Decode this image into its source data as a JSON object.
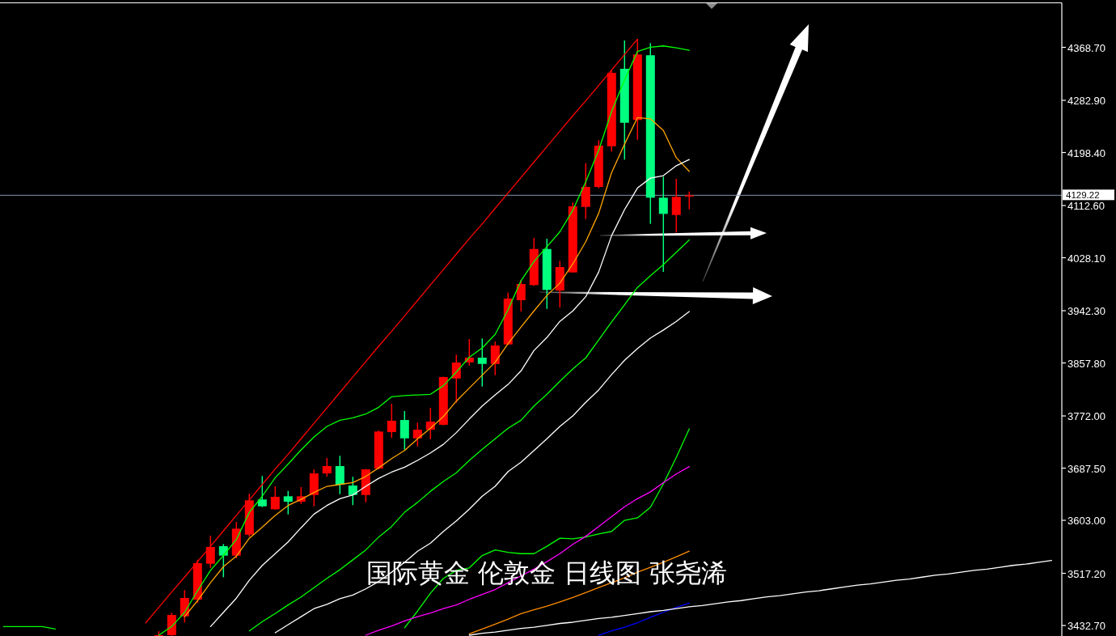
{
  "chart_data": {
    "type": "candlestick",
    "title": "国际黄金 伦敦金 日线图 张尧浠",
    "categories": [
      null,
      null,
      null,
      null,
      null,
      null,
      null,
      null,
      null,
      null,
      null,
      null,
      null,
      null,
      null,
      null,
      null,
      null,
      null,
      null,
      null,
      null,
      null,
      null,
      null,
      null,
      null,
      null,
      null,
      null,
      null,
      null,
      null,
      null,
      null,
      null,
      null,
      null,
      null,
      null,
      null,
      null,
      null,
      null,
      null,
      null,
      null,
      null,
      null,
      null,
      null,
      null,
      null,
      null,
      null,
      null,
      null,
      null,
      null,
      null,
      null,
      null,
      null,
      null,
      null,
      null,
      null,
      null,
      null,
      null,
      null,
      null,
      null,
      null,
      null,
      null,
      null,
      null,
      null,
      null,
      null,
      null
    ],
    "ohlc": [
      null,
      null,
      null,
      null,
      null,
      null,
      null,
      null,
      null,
      null,
      null,
      null,
      [
        3416.0,
        3423.6,
        3416.0,
        3417.0
      ],
      [
        3417.0,
        3453.3,
        3416.0,
        3449.8
      ],
      [
        3447.5,
        3490.0,
        3437.6,
        3477.3
      ],
      [
        3474.6,
        3539.2,
        3469.4,
        3533.6
      ],
      [
        3532.7,
        3578.1,
        3526.1,
        3559.8
      ],
      [
        3561.1,
        3564.6,
        3510.9,
        3545.8
      ],
      [
        3545.8,
        3600.4,
        3541.4,
        3589.5
      ],
      [
        3579.8,
        3646.2,
        3576.4,
        3635.3
      ],
      [
        3636.7,
        3674.7,
        3624.4,
        3625.7
      ],
      [
        3620.9,
        3658.0,
        3620.0,
        3641.0
      ],
      [
        3641.9,
        3650.6,
        3612.6,
        3633.1
      ],
      [
        3633.1,
        3656.7,
        3629.6,
        3641.9
      ],
      [
        3644.0,
        3685.5,
        3625.7,
        3678.9
      ],
      [
        3678.9,
        3703.9,
        3673.7,
        3690.8
      ],
      [
        3690.8,
        3707.4,
        3645.3,
        3660.6
      ],
      [
        3659.3,
        3673.4,
        3627.6,
        3644.0
      ],
      [
        3644.0,
        3686.0,
        3632.2,
        3685.5
      ],
      [
        3686.8,
        3748.8,
        3685.5,
        3746.7
      ],
      [
        3745.8,
        3791.7,
        3736.6,
        3764.2
      ],
      [
        3765.4,
        3779.9,
        3717.4,
        3735.7
      ],
      [
        3735.7,
        3761.1,
        3722.6,
        3749.7
      ],
      [
        3749.7,
        3785.1,
        3734.4,
        3762.8
      ],
      [
        3757.6,
        3835.5,
        3756.7,
        3834.9
      ],
      [
        3832.6,
        3871.2,
        3793.4,
        3858.4
      ],
      [
        3858.8,
        3896.4,
        3853.6,
        3866.3
      ],
      [
        3866.3,
        3897.4,
        3819.6,
        3856.2
      ],
      [
        3856.2,
        3892.5,
        3837.9,
        3886.0
      ],
      [
        3887.7,
        3971.5,
        3887.0,
        3962.0
      ],
      [
        3959.3,
        3992.1,
        3941.0,
        3985.5
      ],
      [
        3983.8,
        4060.2,
        3982.5,
        4042.2
      ],
      [
        4042.2,
        4058.9,
        3945.3,
        3976.0
      ],
      [
        3975.0,
        4023.1,
        3947.5,
        4013.0
      ],
      [
        4004.3,
        4117.8,
        4004.0,
        4111.3
      ],
      [
        4110.4,
        4181.1,
        4090.7,
        4142.7
      ],
      [
        4142.7,
        4218.3,
        4140.5,
        4209.5
      ],
      [
        4208.6,
        4331.8,
        4200.0,
        4327.4
      ],
      [
        4334.0,
        4379.8,
        4186.9,
        4246.6
      ],
      [
        4251.1,
        4382.1,
        4219.1,
        4357.2
      ],
      [
        4355.9,
        4375.5,
        4082.9,
        4125.3
      ],
      [
        4125.3,
        4159.4,
        4005.2,
        4099.1
      ],
      [
        4097.3,
        4155.8,
        4068.9,
        4126.6
      ],
      [
        4127.5,
        4135.3,
        4106.4,
        4129.22
      ],
      null,
      null,
      null,
      null,
      null,
      null,
      null,
      null,
      null,
      null,
      null,
      null,
      null,
      null,
      null,
      null,
      null,
      null,
      null,
      null,
      null,
      null,
      null,
      null,
      null,
      null,
      null,
      null
    ],
    "colors": [
      null,
      null,
      null,
      null,
      null,
      null,
      null,
      null,
      null,
      null,
      null,
      null,
      "#ff0000",
      "#ff0000",
      "#ff0000",
      "#ff0000",
      "#ff0000",
      "#00ff7f",
      "#ff0000",
      "#ff0000",
      "#00ff7f",
      "#ff0000",
      "#00ff7f",
      "#ff0000",
      "#ff0000",
      "#ff0000",
      "#00ff7f",
      "#00ff7f",
      "#ff0000",
      "#ff0000",
      "#ff0000",
      "#00ff7f",
      "#ff0000",
      "#ff0000",
      "#ff0000",
      "#ff0000",
      "#ff0000",
      "#00ff7f",
      "#ff0000",
      "#ff0000",
      "#ff0000",
      "#ff0000",
      "#00ff7f",
      "#ff0000",
      "#ff0000",
      "#ff0000",
      "#ff0000",
      "#ff0000",
      "#00ff7f",
      "#ff0000",
      "#00ff7f",
      "#00ff7f",
      "#ff0000",
      "#ff0000",
      null,
      null,
      null,
      null,
      null,
      null,
      null,
      null,
      null,
      null,
      null,
      null,
      null,
      null,
      null,
      null,
      null,
      null,
      null,
      null,
      null,
      null,
      null,
      null,
      null,
      null,
      null,
      null
    ],
    "series": [
      {
        "type": "line",
        "color": "#00ff00",
        "values": [
          3431,
          3431,
          3431,
          3431,
          3427,
          null,
          null,
          null,
          null,
          null,
          null,
          null,
          3417,
          3431,
          3454,
          3489,
          3522,
          3546,
          3572,
          3616,
          3642,
          3672,
          3694,
          3717,
          3738,
          3755,
          3765,
          3769,
          3775,
          3786,
          3803,
          3805,
          3806,
          3807,
          3821,
          3843,
          3867,
          3882,
          3904,
          3944,
          3991,
          4022,
          4046,
          4070,
          4105,
          4151,
          4202,
          4265,
          4316,
          4362,
          4369,
          4371,
          4368,
          4364,
          null,
          null,
          null,
          null,
          null,
          null,
          null,
          null,
          null,
          null,
          null,
          null,
          null,
          null,
          null,
          null,
          null,
          null,
          null,
          null,
          null,
          null,
          null,
          null,
          null,
          null,
          null,
          null
        ]
      },
      {
        "type": "line",
        "color": "#ffa500",
        "values": [
          null,
          null,
          null,
          null,
          null,
          null,
          null,
          null,
          null,
          null,
          null,
          null,
          null,
          null,
          3447,
          3473,
          3502,
          3528,
          3545,
          3574,
          3592,
          3611,
          3627,
          3637,
          3648,
          3658,
          3661,
          3664,
          3674,
          3688,
          3703,
          3716,
          3735,
          3752,
          3771,
          3796,
          3817,
          3838,
          3859,
          3889,
          3916,
          3942,
          3967,
          3987,
          4018,
          4054,
          4100,
          4166,
          4212,
          4255,
          4253,
          4234,
          4190,
          4168,
          null,
          null,
          null,
          null,
          null,
          null,
          null,
          null,
          null,
          null,
          null,
          null,
          null,
          null,
          null,
          null,
          null,
          null,
          null,
          null,
          null,
          null,
          null,
          null,
          null,
          null,
          null,
          null
        ]
      },
      {
        "type": "line",
        "color": "#ffffff",
        "values": [
          null,
          null,
          null,
          null,
          null,
          null,
          null,
          null,
          null,
          null,
          null,
          null,
          null,
          null,
          null,
          null,
          3431,
          3454,
          3477,
          3506,
          3530,
          3549,
          3568,
          3591,
          3613,
          3627,
          3638,
          3644,
          3658,
          3671,
          3681,
          3689,
          3700,
          3712,
          3726,
          3745,
          3767,
          3788,
          3806,
          3823,
          3845,
          3878,
          3899,
          3925,
          3942,
          3965,
          4005,
          4064,
          4106,
          4141,
          4157,
          4161,
          4177,
          4187,
          null,
          null,
          null,
          null,
          null,
          null,
          null,
          null,
          null,
          null,
          null,
          null,
          null,
          null,
          null,
          null,
          null,
          null,
          null,
          null,
          null,
          null,
          null,
          null,
          null,
          null,
          null,
          null
        ]
      },
      {
        "type": "line",
        "color": "#00ff00",
        "values": [
          null,
          null,
          null,
          null,
          null,
          null,
          null,
          null,
          null,
          null,
          null,
          null,
          null,
          null,
          null,
          null,
          null,
          null,
          null,
          3424,
          3439,
          3452,
          3466,
          3479,
          3494,
          3509,
          3523,
          3539,
          3555,
          3576,
          3593,
          3616,
          3632,
          3650,
          3666,
          3680,
          3700,
          3718,
          3735,
          3752,
          3765,
          3788,
          3807,
          3828,
          3848,
          3866,
          3895,
          3924,
          3952,
          3980,
          3999,
          4017,
          4037,
          4057,
          null,
          null,
          null,
          null,
          null,
          null,
          null,
          null,
          null,
          null,
          null,
          null,
          null,
          null,
          null,
          null,
          null,
          null,
          null,
          null,
          null,
          null,
          null,
          null,
          null,
          null,
          null,
          null
        ]
      },
      {
        "type": "line",
        "color": "#ffffff",
        "values": [
          null,
          null,
          null,
          null,
          null,
          null,
          null,
          null,
          null,
          null,
          null,
          null,
          null,
          null,
          null,
          null,
          null,
          null,
          null,
          null,
          null,
          3421,
          3434,
          3447,
          3460,
          3467,
          3476,
          3482,
          3492,
          3504,
          3519,
          3535,
          3553,
          3566,
          3585,
          3602,
          3621,
          3642,
          3658,
          3682,
          3697,
          3716,
          3735,
          3755,
          3772,
          3794,
          3814,
          3839,
          3862,
          3881,
          3898,
          3911,
          3925,
          3941,
          null,
          null,
          null,
          null,
          null,
          null,
          null,
          null,
          null,
          null,
          null,
          null,
          null,
          null,
          null,
          null,
          null,
          null,
          null,
          null,
          null,
          null,
          null,
          null,
          null,
          null,
          null,
          null
        ]
      },
      {
        "type": "line",
        "color": "#00ff00",
        "values": [
          null,
          null,
          null,
          null,
          null,
          null,
          null,
          null,
          null,
          null,
          null,
          null,
          null,
          null,
          null,
          null,
          null,
          null,
          null,
          null,
          null,
          null,
          null,
          null,
          null,
          null,
          null,
          null,
          null,
          null,
          null,
          3429,
          3456,
          3485,
          3509,
          3522,
          3526,
          3546,
          3555,
          3551,
          3549,
          3549,
          3561,
          3574,
          3573,
          3576,
          3581,
          3585,
          3603,
          3607,
          3624,
          3662,
          3705,
          3751,
          null,
          null,
          null,
          null,
          null,
          null,
          null,
          null,
          null,
          null,
          null,
          null,
          null,
          null,
          null,
          null,
          null,
          null,
          null,
          null,
          null,
          null,
          null,
          null,
          null,
          null,
          null,
          null
        ]
      },
      {
        "type": "line",
        "color": "#ff00ff",
        "values": [
          null,
          null,
          null,
          null,
          null,
          null,
          null,
          null,
          null,
          null,
          null,
          null,
          null,
          null,
          null,
          null,
          null,
          null,
          null,
          null,
          null,
          null,
          null,
          null,
          null,
          null,
          null,
          null,
          3417,
          3425,
          3432,
          3440,
          3447,
          3453,
          3460,
          3466,
          3475,
          3483,
          3491,
          3502,
          3513,
          3524,
          3536,
          3549,
          3564,
          3577,
          3593,
          3609,
          3625,
          3638,
          3649,
          3664,
          3678,
          3690,
          null,
          null,
          null,
          null,
          null,
          null,
          null,
          null,
          null,
          null,
          null,
          null,
          null,
          null,
          null,
          null,
          null,
          null,
          null,
          null,
          null,
          null,
          null,
          null,
          null,
          null,
          null,
          null
        ]
      },
      {
        "type": "line",
        "color": "#ff8c00",
        "values": [
          null,
          null,
          null,
          null,
          null,
          null,
          null,
          null,
          null,
          null,
          null,
          null,
          null,
          null,
          null,
          null,
          null,
          null,
          null,
          null,
          null,
          null,
          null,
          null,
          null,
          null,
          null,
          null,
          null,
          null,
          null,
          null,
          null,
          null,
          null,
          null,
          3419,
          3427,
          3435,
          3443,
          3452,
          3458,
          3464,
          3471,
          3478,
          3486,
          3494,
          3502,
          3510,
          3519,
          3527,
          3535,
          3544,
          3553,
          null,
          null,
          null,
          null,
          null,
          null,
          null,
          null,
          null,
          null,
          null,
          null,
          null,
          null,
          null,
          null,
          null,
          null,
          null,
          null,
          null,
          null,
          null,
          null,
          null,
          null,
          null,
          null
        ]
      },
      {
        "type": "line",
        "color": "#0000ff",
        "values": [
          null,
          null,
          null,
          null,
          null,
          null,
          null,
          null,
          null,
          null,
          null,
          null,
          null,
          null,
          null,
          null,
          null,
          null,
          null,
          null,
          null,
          null,
          null,
          null,
          null,
          null,
          null,
          null,
          null,
          null,
          null,
          null,
          null,
          null,
          null,
          null,
          null,
          null,
          null,
          null,
          null,
          null,
          null,
          null,
          null,
          null,
          3417,
          3424,
          3430,
          3437,
          3446,
          3454,
          3462,
          3469,
          null,
          null,
          null,
          null,
          null,
          null,
          null,
          null,
          null,
          null,
          null,
          null,
          null,
          null,
          null,
          null,
          null,
          null,
          null,
          null,
          null,
          null,
          null,
          null,
          null,
          null,
          null,
          null
        ]
      },
      {
        "type": "line",
        "color": "#ff0000",
        "values": [
          null,
          null,
          null,
          null,
          null,
          null,
          null,
          null,
          null,
          null,
          null,
          3437,
          3462,
          3487,
          3511,
          3536,
          3561,
          3586,
          3611,
          3636,
          3661,
          3686,
          3710,
          3735,
          3760,
          3785,
          3810,
          3835,
          3860,
          3885,
          3909,
          3934,
          3959,
          3984,
          4009,
          4034,
          4059,
          4083,
          4108,
          4133,
          4158,
          4183,
          4208,
          4233,
          4258,
          4282,
          4307,
          4332,
          4357,
          4382,
          null,
          null,
          null,
          null,
          null,
          null,
          null,
          null,
          null,
          null,
          null,
          null,
          null,
          null,
          null,
          null,
          null,
          null,
          null,
          null,
          null,
          null,
          null,
          null,
          null,
          null,
          null,
          null,
          null,
          null,
          null,
          null
        ]
      },
      {
        "type": "line",
        "color": "#ffffff",
        "values": [
          null,
          null,
          null,
          null,
          null,
          null,
          null,
          null,
          null,
          null,
          null,
          null,
          null,
          null,
          null,
          null,
          null,
          null,
          null,
          null,
          null,
          null,
          null,
          null,
          null,
          null,
          null,
          null,
          null,
          null,
          null,
          null,
          null,
          null,
          null,
          null,
          3417,
          3420,
          3422,
          3425,
          3428,
          3430,
          3433,
          3436,
          3438,
          3441,
          3444,
          3446,
          3449,
          3452,
          3455,
          3457,
          3460,
          3463,
          3465,
          3468,
          3471,
          3473,
          3476,
          3479,
          3481,
          3484,
          3487,
          3489,
          3492,
          3495,
          3498,
          3500,
          3503,
          3506,
          3508,
          3511,
          3514,
          3516,
          3519,
          3522,
          3524,
          3527,
          3530,
          3532,
          3535,
          3538
        ]
      }
    ],
    "ylim": [
      3415.7,
      4440.1
    ],
    "yticks": [
      {
        "value": 4368.7,
        "label": "4368.70"
      },
      {
        "value": 4282.9,
        "label": "4282.90"
      },
      {
        "value": 4198.4,
        "label": "4198.40"
      },
      {
        "value": 4112.6,
        "label": "4112.60"
      },
      {
        "value": 4028.1,
        "label": "4028.10"
      },
      {
        "value": 3942.3,
        "label": "3942.30"
      },
      {
        "value": 3857.8,
        "label": "3857.80"
      },
      {
        "value": 3772.0,
        "label": "3772.00"
      },
      {
        "value": 3687.5,
        "label": "3687.50"
      },
      {
        "value": 3603.0,
        "label": "3603.00"
      },
      {
        "value": 3517.2,
        "label": "3517.20"
      },
      {
        "value": 3432.7,
        "label": "3432.70"
      }
    ],
    "tick_labels": "y",
    "ref_lines": [
      {
        "axis": "y",
        "value": 4129.22,
        "label": "4129.22",
        "color": "#8497b0"
      }
    ]
  }
}
